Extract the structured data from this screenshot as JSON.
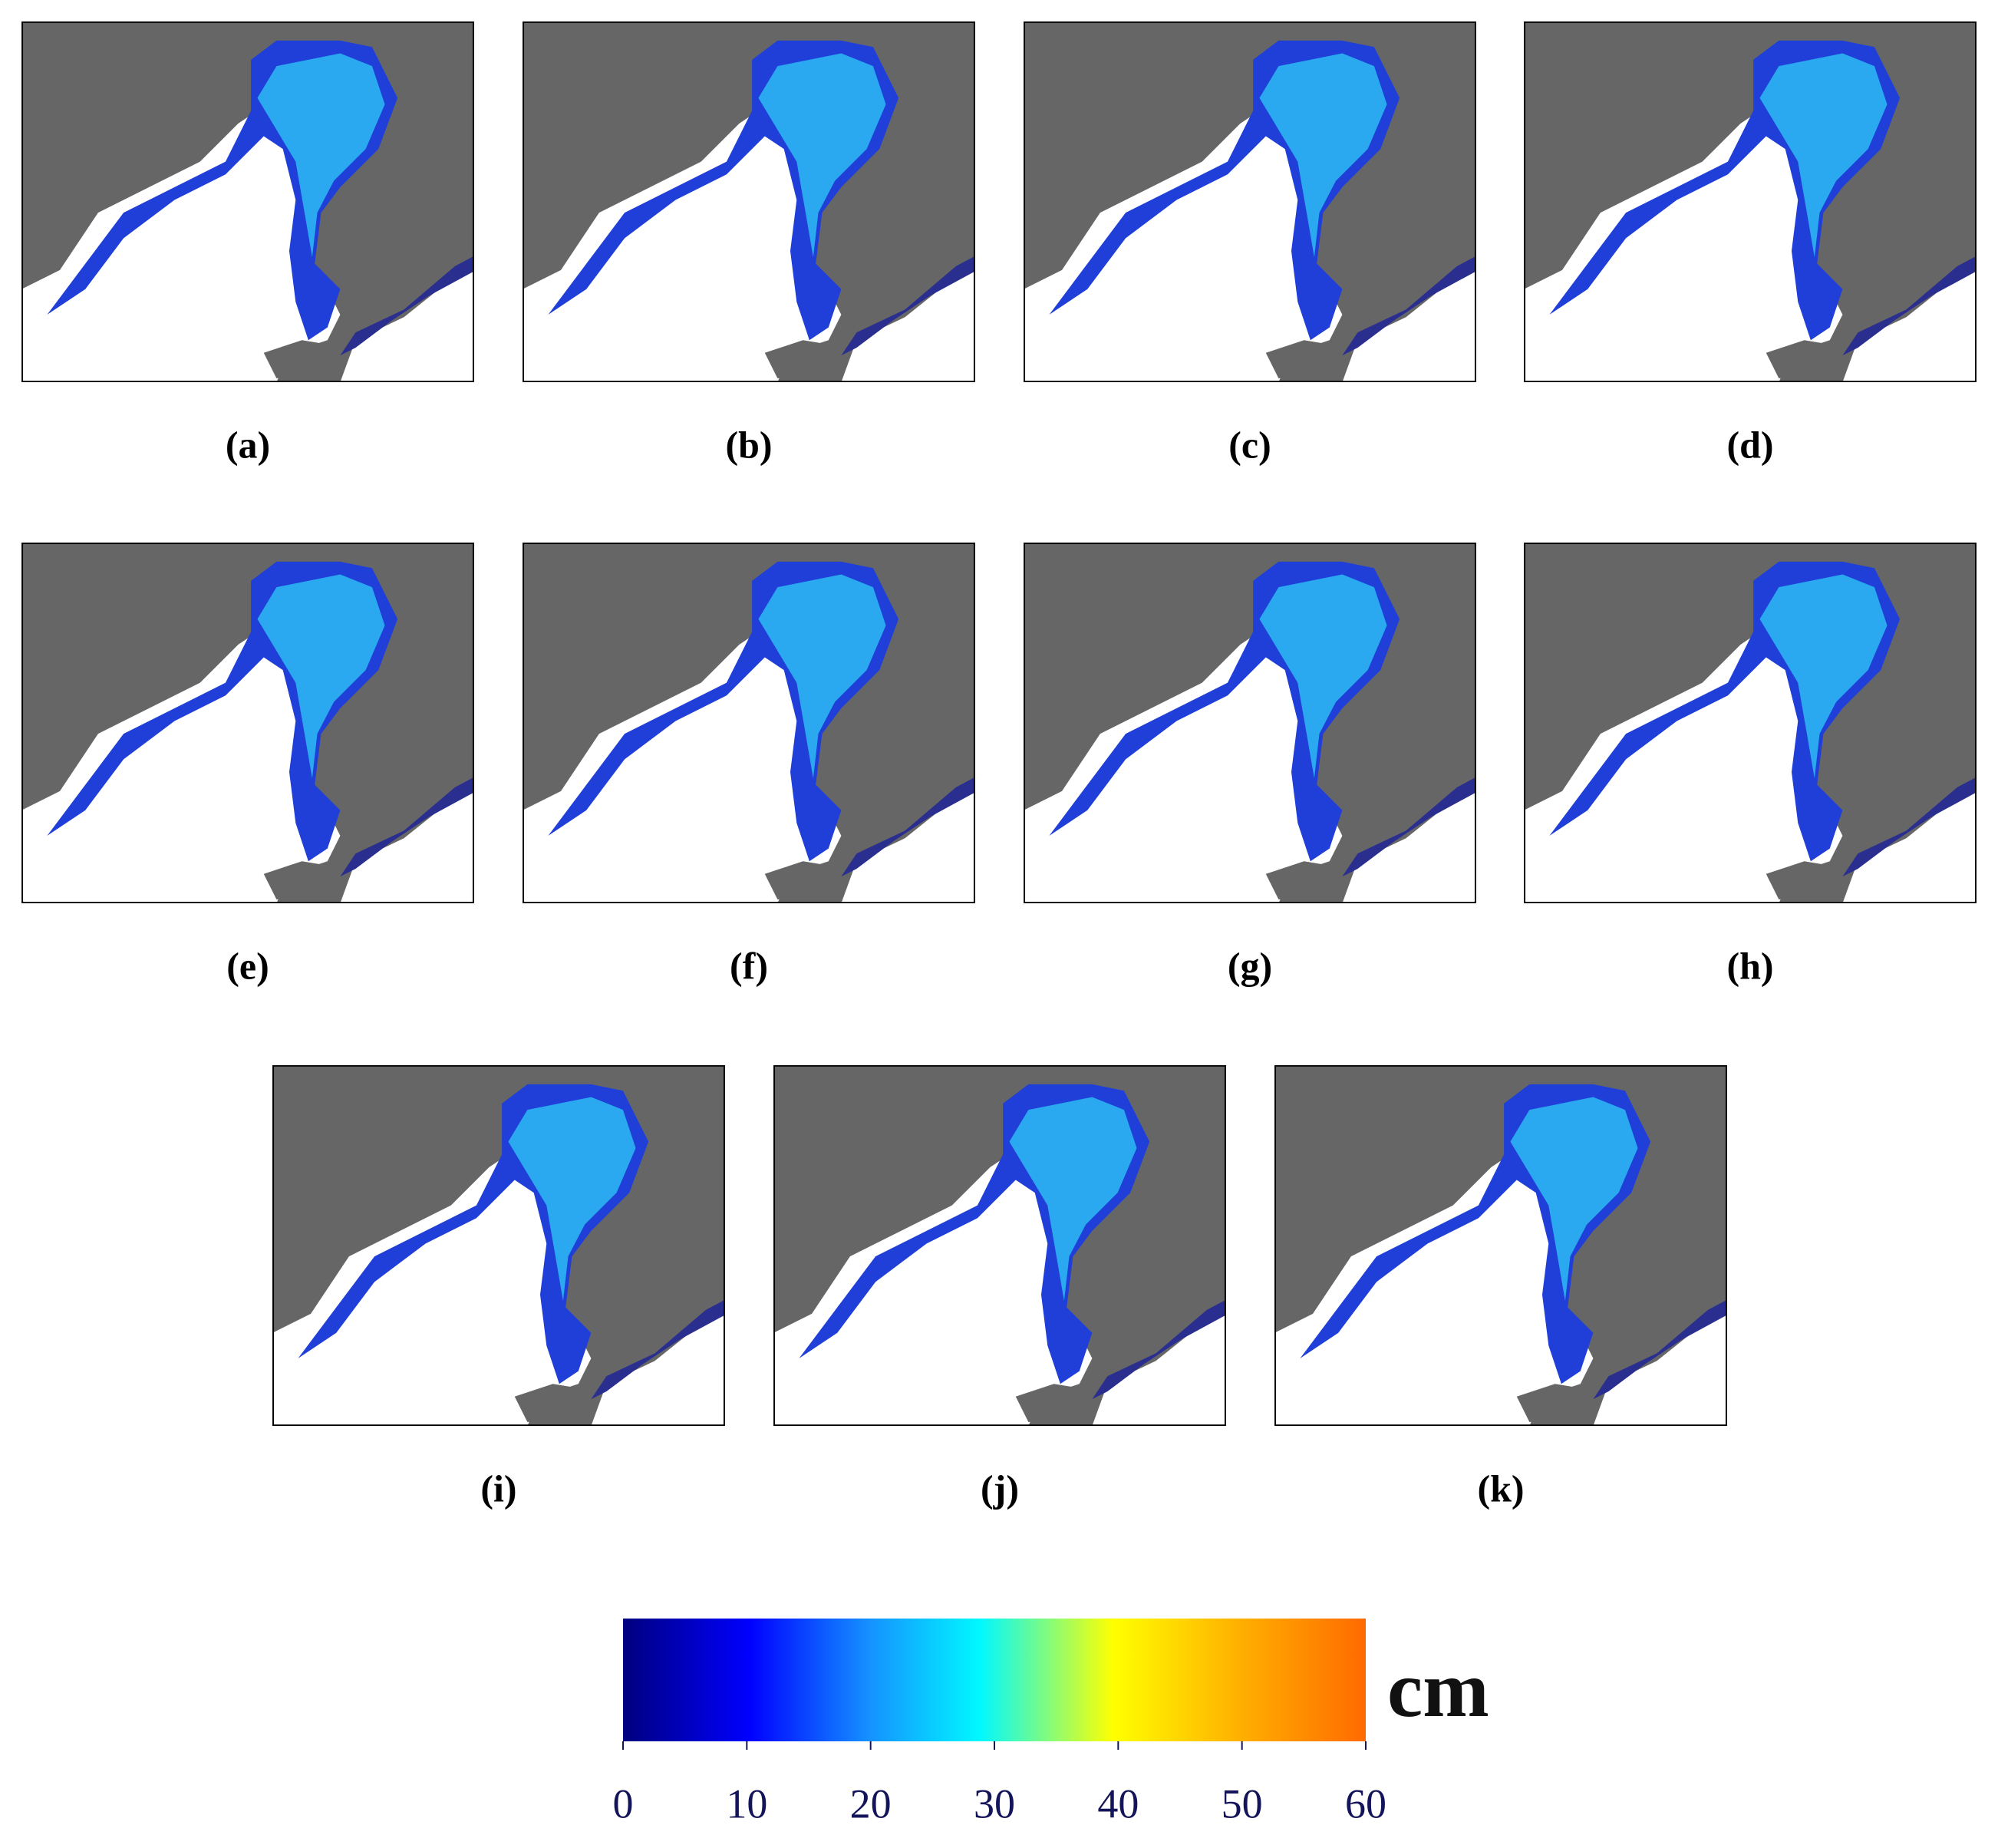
{
  "panels": [
    {
      "label": "(a)"
    },
    {
      "label": "(b)"
    },
    {
      "label": "(c)"
    },
    {
      "label": "(d)"
    },
    {
      "label": "(e)"
    },
    {
      "label": "(f)"
    },
    {
      "label": "(g)"
    },
    {
      "label": "(h)"
    },
    {
      "label": "(i)"
    },
    {
      "label": "(j)"
    },
    {
      "label": "(k)"
    }
  ],
  "colorbar": {
    "unit": "cm",
    "lim": [
      0,
      60
    ],
    "ticks": [
      0,
      10,
      20,
      30,
      40,
      50,
      60
    ]
  }
}
